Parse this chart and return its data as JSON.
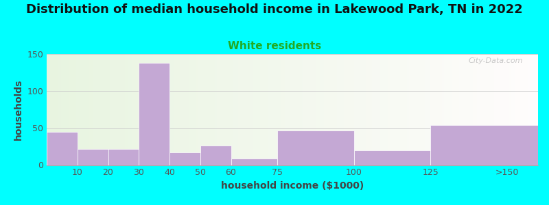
{
  "title": "Distribution of median household income in Lakewood Park, TN in 2022",
  "subtitle": "White residents",
  "xlabel": "household income ($1000)",
  "ylabel": "households",
  "background_outer": "#00FFFF",
  "bar_color": "#C4A8D4",
  "categories": [
    "10",
    "20",
    "30",
    "40",
    "50",
    "60",
    "75",
    "100",
    "125",
    ">150"
  ],
  "values": [
    45,
    22,
    22,
    138,
    17,
    26,
    9,
    47,
    20,
    54
  ],
  "bar_lefts": [
    0,
    10,
    20,
    30,
    40,
    50,
    60,
    75,
    100,
    125
  ],
  "bar_widths": [
    10,
    10,
    10,
    10,
    10,
    10,
    15,
    25,
    25,
    35
  ],
  "xlim": [
    0,
    160
  ],
  "ylim": [
    0,
    150
  ],
  "yticks": [
    0,
    50,
    100,
    150
  ],
  "xtick_labels": [
    "10",
    "20",
    "30",
    "40",
    "50",
    "60",
    "75",
    "100",
    "125",
    ">150"
  ],
  "xtick_positions": [
    10,
    20,
    30,
    40,
    50,
    60,
    75,
    100,
    125,
    150
  ],
  "title_fontsize": 13,
  "subtitle_fontsize": 11,
  "subtitle_color": "#22AA22",
  "axis_label_fontsize": 10,
  "tick_fontsize": 9,
  "watermark": "City-Data.com"
}
